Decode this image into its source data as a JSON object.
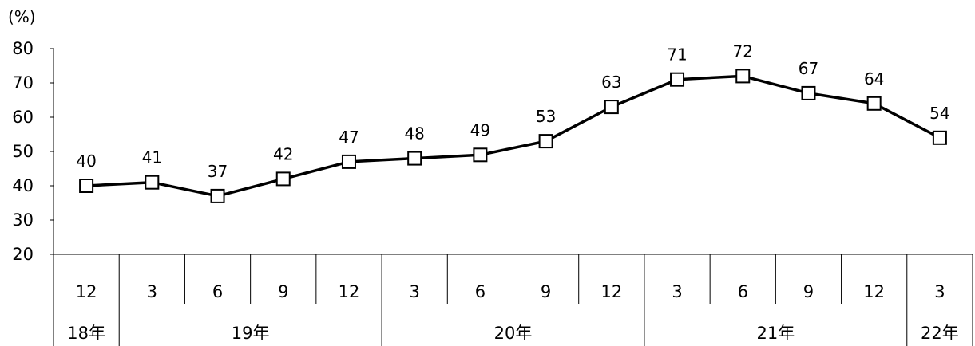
{
  "chart_data": {
    "type": "line",
    "unit_label": "(%)",
    "y_ticks": [
      "80",
      "70",
      "60",
      "50",
      "40",
      "30",
      "20"
    ],
    "ylim": [
      20,
      80
    ],
    "grid": false,
    "categories": [
      "12",
      "3",
      "6",
      "9",
      "12",
      "3",
      "6",
      "9",
      "12",
      "3",
      "6",
      "9",
      "12",
      "3"
    ],
    "series": [
      {
        "values": [
          40,
          41,
          37,
          42,
          47,
          48,
          49,
          53,
          63,
          71,
          72,
          67,
          64,
          54
        ],
        "labels": [
          "40",
          "41",
          "37",
          "42",
          "47",
          "48",
          "49",
          "53",
          "63",
          "71",
          "72",
          "67",
          "64",
          "54"
        ],
        "marker": "open-square",
        "color": "#000000"
      }
    ],
    "years": [
      {
        "label": "18年",
        "start": 0,
        "end": 0
      },
      {
        "label": "19年",
        "start": 1,
        "end": 4
      },
      {
        "label": "20年",
        "start": 5,
        "end": 8
      },
      {
        "label": "21年",
        "start": 9,
        "end": 12
      },
      {
        "label": "22年",
        "start": 13,
        "end": 13
      }
    ]
  }
}
